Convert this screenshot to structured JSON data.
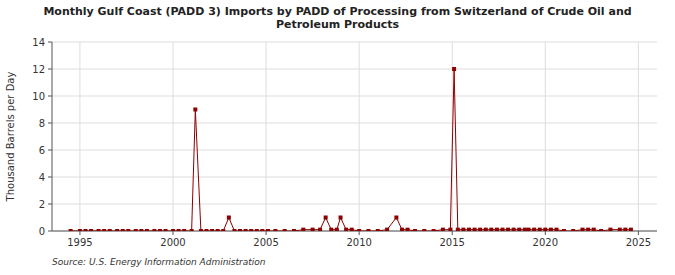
{
  "chart_data": {
    "type": "line",
    "title": "Monthly Gulf Coast (PADD 3) Imports by PADD of Processing from Switzerland of Crude Oil and\nPetroleum Products",
    "ylabel": "Thousand Barrels per Day",
    "annotations": [
      "Source: U.S. Energy Information Administration"
    ],
    "color": "#8b0000",
    "marker": "square",
    "grid": true,
    "xlim": [
      1993.5,
      2026
    ],
    "ylim": [
      0,
      14
    ],
    "yticks": [
      0,
      2,
      4,
      6,
      8,
      10,
      12,
      14
    ],
    "xticks": [
      1995,
      2000,
      2005,
      2010,
      2015,
      2020,
      2025
    ],
    "x": [
      1994.5,
      1995.0,
      1995.3,
      1995.6,
      1996.0,
      1996.3,
      1996.6,
      1997.0,
      1997.3,
      1997.6,
      1998.0,
      1998.3,
      1998.6,
      1999.0,
      1999.3,
      1999.6,
      2000.0,
      2000.3,
      2000.6,
      2001.0,
      2001.2,
      2001.5,
      2001.8,
      2002.1,
      2002.4,
      2002.7,
      2003.0,
      2003.3,
      2003.6,
      2003.9,
      2004.2,
      2004.5,
      2004.8,
      2005.1,
      2005.5,
      2006.0,
      2006.5,
      2007.0,
      2007.5,
      2007.9,
      2008.2,
      2008.5,
      2008.8,
      2009.0,
      2009.3,
      2009.6,
      2010.0,
      2010.5,
      2011.0,
      2011.5,
      2012.0,
      2012.3,
      2012.6,
      2013.0,
      2013.5,
      2014.0,
      2014.5,
      2014.9,
      2015.1,
      2015.3,
      2015.6,
      2015.9,
      2016.2,
      2016.5,
      2016.8,
      2017.1,
      2017.4,
      2017.7,
      2018.0,
      2018.3,
      2018.6,
      2018.9,
      2019.1,
      2019.4,
      2019.7,
      2020.0,
      2020.3,
      2020.6,
      2021.0,
      2021.5,
      2022.0,
      2022.3,
      2022.6,
      2023.0,
      2023.5,
      2024.0,
      2024.3,
      2024.6
    ],
    "values": [
      0,
      0,
      0,
      0,
      0,
      0,
      0,
      0,
      0,
      0,
      0,
      0,
      0,
      0,
      0,
      0,
      0,
      0,
      0,
      0,
      9,
      0,
      0,
      0,
      0,
      0,
      1,
      0,
      0,
      0,
      0,
      0,
      0,
      0,
      0,
      0,
      0,
      0.1,
      0.1,
      0.1,
      1,
      0.1,
      0.1,
      1,
      0.1,
      0.1,
      0,
      0,
      0,
      0.1,
      1,
      0.1,
      0.1,
      0,
      0,
      0,
      0.1,
      0.1,
      12,
      0.1,
      0.1,
      0.1,
      0.1,
      0.1,
      0.1,
      0.1,
      0.1,
      0.1,
      0.1,
      0.1,
      0.1,
      0.1,
      0.1,
      0.1,
      0.1,
      0.1,
      0.1,
      0.1,
      0,
      0,
      0.1,
      0.1,
      0.1,
      0,
      0.1,
      0.1,
      0.1,
      0.1
    ]
  }
}
